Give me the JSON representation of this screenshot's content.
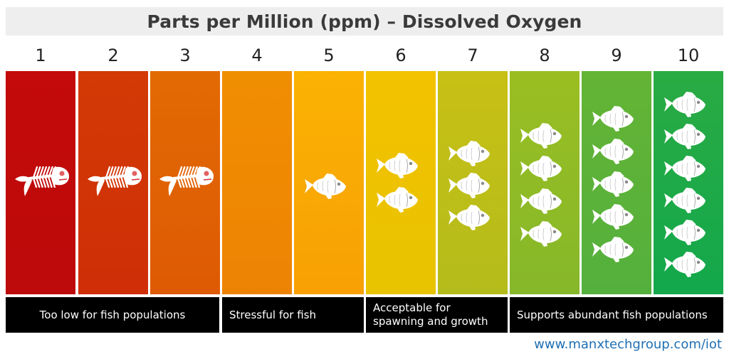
{
  "title": "Parts per Million (ppm) – Dissolved Oxygen",
  "levels": [
    {
      "value": "1",
      "color_top": "#c40a0a",
      "color_bottom": "#bd0a0a",
      "icon": "fish-skeleton-icon",
      "fish_count": 1
    },
    {
      "value": "2",
      "color_top": "#d33a05",
      "color_bottom": "#cf2e06",
      "icon": "fish-skeleton-icon",
      "fish_count": 1
    },
    {
      "value": "3",
      "color_top": "#e26a03",
      "color_bottom": "#de5a04",
      "icon": "fish-skeleton-icon",
      "fish_count": 1
    },
    {
      "value": "4",
      "color_top": "#f08e02",
      "color_bottom": "#ee8303",
      "icon": "none",
      "fish_count": 0
    },
    {
      "value": "5",
      "color_top": "#fab203",
      "color_bottom": "#f8a004",
      "icon": "fish-icon",
      "fish_count": 1
    },
    {
      "value": "6",
      "color_top": "#f3c200",
      "color_bottom": "#e8c300",
      "icon": "fish-icon",
      "fish_count": 2
    },
    {
      "value": "7",
      "color_top": "#c8c015",
      "color_bottom": "#b4bc1b",
      "icon": "fish-icon",
      "fish_count": 3
    },
    {
      "value": "8",
      "color_top": "#9abe22",
      "color_bottom": "#86b82a",
      "icon": "fish-icon",
      "fish_count": 4
    },
    {
      "value": "9",
      "color_top": "#64b435",
      "color_bottom": "#54b03d",
      "icon": "fish-icon",
      "fish_count": 5
    },
    {
      "value": "10",
      "color_top": "#2aab43",
      "color_bottom": "#13a84c",
      "icon": "fish-icon",
      "fish_count": 6
    }
  ],
  "categories": [
    {
      "label": "Too low for fish populations",
      "from": "1",
      "to": "3"
    },
    {
      "label": "Stressful for fish",
      "from": "4",
      "to": "5"
    },
    {
      "label": "Acceptable for\nspawning and growth",
      "from": "6",
      "to": "7"
    },
    {
      "label": "Supports abundant fish populations",
      "from": "8",
      "to": "10"
    }
  ],
  "footer_link": "www.manxtechgroup.com/iot"
}
